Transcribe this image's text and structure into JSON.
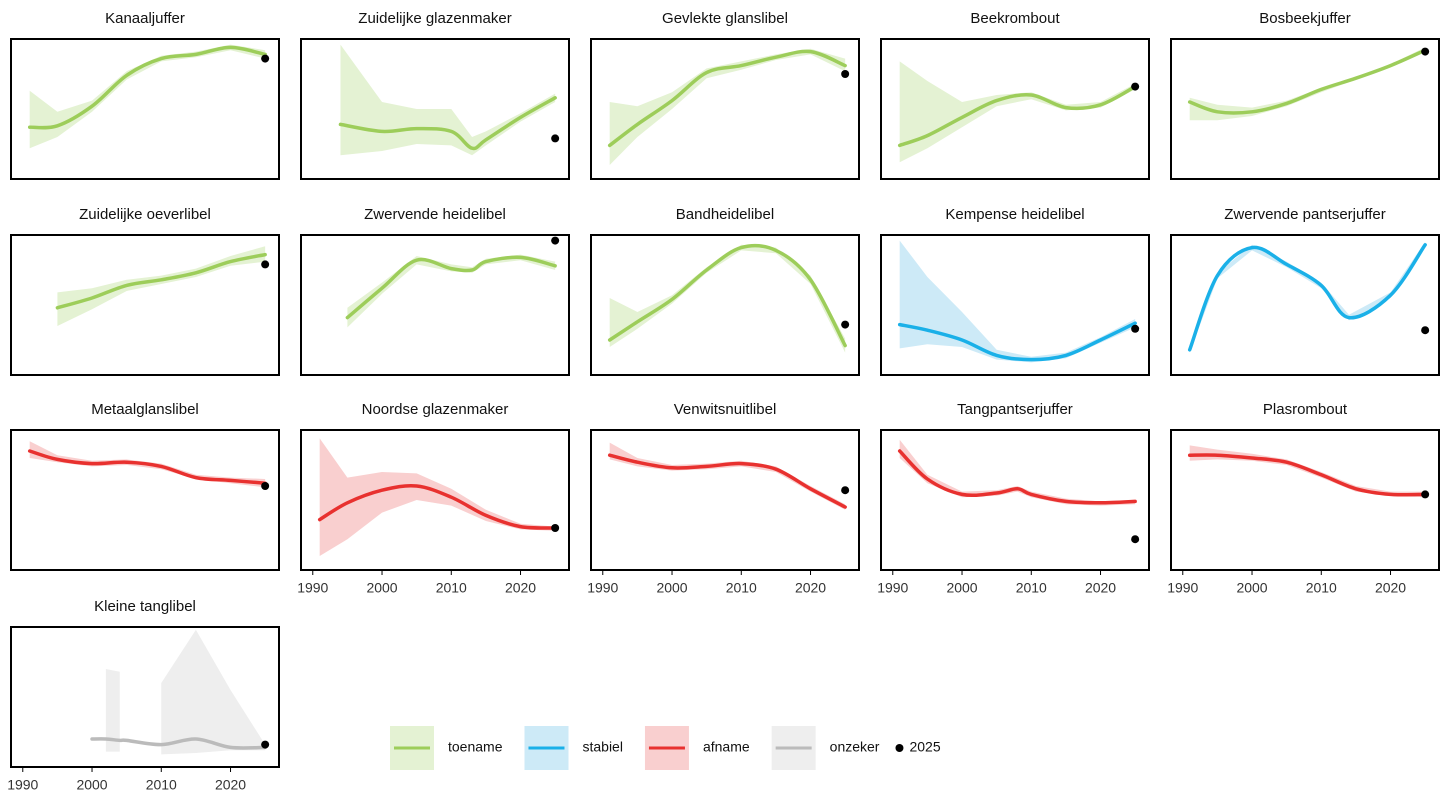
{
  "chart_data": {
    "type": "small-multiples",
    "panels": [
      {
        "type": "line",
        "title": "Kanaaljuffer",
        "color": "#9dcd5a",
        "band_color": "#e4f2d3",
        "xlim": [
          1988.3,
          2027
        ],
        "ylim": [
          0,
          100
        ],
        "x": [
          1991,
          1995,
          2000,
          2005,
          2010,
          2015,
          2020,
          2025
        ],
        "values": [
          37,
          38,
          52,
          74,
          86,
          89,
          94,
          89
        ],
        "upper": [
          63,
          48,
          56,
          77,
          88,
          91,
          96,
          92
        ],
        "lower": [
          22,
          30,
          48,
          71,
          84,
          87,
          92,
          86
        ],
        "point": {
          "x": 2025,
          "y": 86
        }
      },
      {
        "type": "line",
        "title": "Zuidelijke glazenmaker",
        "color": "#9dcd5a",
        "band_color": "#e4f2d3",
        "xlim": [
          1988.3,
          2027
        ],
        "ylim": [
          0,
          100
        ],
        "x": [
          1994,
          2000,
          2005,
          2010,
          2013,
          2015,
          2020,
          2025
        ],
        "values": [
          39,
          34,
          36,
          34,
          22,
          28,
          44,
          58
        ],
        "upper": [
          96,
          55,
          50,
          50,
          30,
          34,
          47,
          61
        ],
        "lower": [
          17,
          20,
          25,
          24,
          17,
          24,
          41,
          55
        ],
        "point": {
          "x": 2025,
          "y": 29
        }
      },
      {
        "type": "line",
        "title": "Gevlekte glanslibel",
        "color": "#9dcd5a",
        "band_color": "#e4f2d3",
        "xlim": [
          1988.3,
          2027
        ],
        "ylim": [
          0,
          100
        ],
        "x": [
          1991,
          1995,
          2000,
          2005,
          2010,
          2015,
          2020,
          2025
        ],
        "values": [
          24,
          39,
          56,
          76,
          81,
          87,
          91,
          81
        ],
        "upper": [
          55,
          52,
          62,
          79,
          84,
          89,
          93,
          86
        ],
        "lower": [
          10,
          30,
          50,
          72,
          78,
          85,
          89,
          77
        ],
        "point": {
          "x": 2025,
          "y": 75
        }
      },
      {
        "type": "line",
        "title": "Beekrombout",
        "color": "#9dcd5a",
        "band_color": "#e4f2d3",
        "xlim": [
          1988.3,
          2027
        ],
        "ylim": [
          0,
          100
        ],
        "x": [
          1991,
          1995,
          2000,
          2005,
          2010,
          2015,
          2020,
          2025
        ],
        "values": [
          24,
          31,
          44,
          56,
          60,
          51,
          53,
          66
        ],
        "upper": [
          84,
          70,
          55,
          60,
          62,
          53,
          55,
          68
        ],
        "lower": [
          12,
          22,
          37,
          52,
          57,
          49,
          51,
          64
        ],
        "point": {
          "x": 2025,
          "y": 66
        }
      },
      {
        "type": "line",
        "title": "Bosbeekjuffer",
        "color": "#9dcd5a",
        "band_color": "#e4f2d3",
        "xlim": [
          1988.3,
          2027
        ],
        "ylim": [
          0,
          100
        ],
        "x": [
          1991,
          1995,
          2000,
          2005,
          2010,
          2015,
          2020,
          2025
        ],
        "values": [
          55,
          48,
          48,
          54,
          64,
          72,
          81,
          92
        ],
        "upper": [
          58,
          53,
          51,
          56,
          65,
          73,
          82,
          94
        ],
        "lower": [
          42,
          42,
          45,
          52,
          62,
          71,
          80,
          91
        ],
        "point": {
          "x": 2025,
          "y": 91
        }
      },
      {
        "type": "line",
        "title": "Zuidelijke oeverlibel",
        "color": "#9dcd5a",
        "band_color": "#e4f2d3",
        "xlim": [
          1988.3,
          2027
        ],
        "ylim": [
          0,
          100
        ],
        "x": [
          1995,
          2000,
          2005,
          2010,
          2015,
          2020,
          2025
        ],
        "values": [
          48,
          55,
          64,
          68,
          73,
          81,
          86
        ],
        "upper": [
          59,
          62,
          68,
          71,
          76,
          85,
          92
        ],
        "lower": [
          35,
          47,
          60,
          65,
          70,
          78,
          81
        ],
        "point": {
          "x": 2025,
          "y": 79
        }
      },
      {
        "type": "line",
        "title": "Zwervende heidelibel",
        "color": "#9dcd5a",
        "band_color": "#e4f2d3",
        "xlim": [
          1988.3,
          2027
        ],
        "ylim": [
          0,
          100
        ],
        "x": [
          1995,
          2000,
          2005,
          2010,
          2013,
          2015,
          2020,
          2025
        ],
        "values": [
          41,
          62,
          82,
          76,
          75,
          81,
          84,
          78
        ],
        "upper": [
          48,
          66,
          85,
          79,
          77,
          83,
          86,
          81
        ],
        "lower": [
          34,
          58,
          79,
          74,
          73,
          79,
          82,
          75
        ],
        "point": {
          "x": 2025,
          "y": 96
        }
      },
      {
        "type": "line",
        "title": "Bandheidelibel",
        "color": "#9dcd5a",
        "band_color": "#e4f2d3",
        "xlim": [
          1988.3,
          2027
        ],
        "ylim": [
          0,
          100
        ],
        "x": [
          1991,
          1995,
          2000,
          2005,
          2010,
          2015,
          2020,
          2025
        ],
        "values": [
          25,
          38,
          54,
          75,
          91,
          89,
          68,
          21
        ],
        "upper": [
          55,
          45,
          57,
          77,
          93,
          91,
          71,
          26
        ],
        "lower": [
          20,
          33,
          51,
          73,
          89,
          87,
          65,
          16
        ],
        "point": {
          "x": 2025,
          "y": 36
        }
      },
      {
        "type": "line",
        "title": "Kempense heidelibel",
        "color": "#1ab0e8",
        "band_color": "#cdeaf7",
        "xlim": [
          1988.3,
          2027
        ],
        "ylim": [
          0,
          100
        ],
        "x": [
          1991,
          1995,
          2000,
          2005,
          2010,
          2015,
          2020,
          2025
        ],
        "values": [
          36,
          32,
          25,
          14,
          11,
          14,
          25,
          37
        ],
        "upper": [
          96,
          70,
          45,
          18,
          13,
          16,
          27,
          40
        ],
        "lower": [
          19,
          22,
          20,
          11,
          9,
          12,
          23,
          34
        ],
        "point": {
          "x": 2025,
          "y": 33
        }
      },
      {
        "type": "line",
        "title": "Zwervende pantserjuffer",
        "color": "#1ab0e8",
        "band_color": "#cdeaf7",
        "xlim": [
          1988.3,
          2027
        ],
        "ylim": [
          0,
          100
        ],
        "x": [
          1991,
          1995,
          2000,
          2005,
          2010,
          2014,
          2020,
          2025
        ],
        "values": [
          18,
          71,
          91,
          79,
          64,
          41,
          57,
          93
        ],
        "upper": [
          20,
          73,
          93,
          81,
          66,
          43,
          59,
          95
        ],
        "lower": [
          16,
          69,
          89,
          77,
          62,
          39,
          55,
          91
        ],
        "point": {
          "x": 2025,
          "y": 32
        }
      },
      {
        "type": "line",
        "title": "Metaalglanslibel",
        "color": "#e8312f",
        "band_color": "#f9cfcf",
        "xlim": [
          1988.3,
          2027
        ],
        "ylim": [
          0,
          100
        ],
        "x": [
          1991,
          1995,
          2000,
          2005,
          2010,
          2015,
          2020,
          2025
        ],
        "values": [
          85,
          79,
          76,
          77,
          74,
          66,
          64,
          62
        ],
        "upper": [
          92,
          82,
          78,
          79,
          76,
          68,
          66,
          65
        ],
        "lower": [
          80,
          77,
          74,
          75,
          72,
          65,
          62,
          59
        ],
        "point": {
          "x": 2025,
          "y": 60
        }
      },
      {
        "type": "line",
        "title": "Noordse glazenmaker",
        "color": "#e8312f",
        "band_color": "#f9cfcf",
        "xlim": [
          1988.3,
          2027
        ],
        "ylim": [
          0,
          100
        ],
        "xticks": [
          1990,
          2000,
          2010,
          2020
        ],
        "x": [
          1991,
          1995,
          2000,
          2005,
          2010,
          2015,
          2020,
          2025
        ],
        "values": [
          36,
          48,
          57,
          60,
          52,
          39,
          31,
          30
        ],
        "upper": [
          94,
          66,
          70,
          69,
          58,
          43,
          33,
          31
        ],
        "lower": [
          10,
          22,
          41,
          50,
          46,
          35,
          29,
          28
        ],
        "point": {
          "x": 2025,
          "y": 30
        }
      },
      {
        "type": "line",
        "title": "Venwitsnuitlibel",
        "color": "#e8312f",
        "band_color": "#f9cfcf",
        "xlim": [
          1988.3,
          2027
        ],
        "ylim": [
          0,
          100
        ],
        "xticks": [
          1990,
          2000,
          2010,
          2020
        ],
        "x": [
          1991,
          1995,
          2000,
          2005,
          2010,
          2015,
          2020,
          2025
        ],
        "values": [
          82,
          77,
          73,
          74,
          76,
          72,
          58,
          45
        ],
        "upper": [
          91,
          80,
          75,
          76,
          78,
          74,
          60,
          47
        ],
        "lower": [
          79,
          74,
          71,
          72,
          74,
          70,
          56,
          43
        ],
        "point": {
          "x": 2025,
          "y": 57
        }
      },
      {
        "type": "line",
        "title": "Tangpantserjuffer",
        "color": "#e8312f",
        "band_color": "#f9cfcf",
        "xlim": [
          1988.3,
          2027
        ],
        "ylim": [
          0,
          100
        ],
        "xticks": [
          1990,
          2000,
          2010,
          2020
        ],
        "x": [
          1991,
          1995,
          2000,
          2005,
          2008,
          2010,
          2015,
          2020,
          2025
        ],
        "values": [
          85,
          65,
          54,
          55,
          58,
          54,
          49,
          48,
          49
        ],
        "upper": [
          93,
          68,
          56,
          57,
          60,
          56,
          51,
          49,
          50
        ],
        "lower": [
          80,
          62,
          52,
          53,
          56,
          52,
          47,
          46,
          47
        ],
        "point": {
          "x": 2025,
          "y": 22
        }
      },
      {
        "type": "line",
        "title": "Plasrombout",
        "color": "#e8312f",
        "band_color": "#f9cfcf",
        "xlim": [
          1988.3,
          2027
        ],
        "ylim": [
          0,
          100
        ],
        "xticks": [
          1990,
          2000,
          2010,
          2020
        ],
        "x": [
          1991,
          1995,
          2000,
          2005,
          2010,
          2015,
          2020,
          2025
        ],
        "values": [
          82,
          82,
          80,
          77,
          68,
          58,
          54,
          54
        ],
        "upper": [
          89,
          86,
          83,
          79,
          70,
          60,
          56,
          56
        ],
        "lower": [
          78,
          79,
          78,
          75,
          66,
          56,
          53,
          52
        ],
        "point": {
          "x": 2025,
          "y": 54
        }
      },
      {
        "type": "line",
        "title": "Kleine tanglibel",
        "color": "#bbbbbb",
        "band_color": "#eeeeee",
        "xlim": [
          1988.3,
          2027
        ],
        "ylim": [
          0,
          100
        ],
        "xticks": [
          1990,
          2000,
          2010,
          2020
        ],
        "x": [
          2000,
          2002,
          2004,
          2005,
          2010,
          2015,
          2020,
          2025
        ],
        "values": [
          20,
          20,
          19,
          19,
          16,
          20,
          14,
          14
        ],
        "upper": [
          null,
          70,
          68,
          null,
          60,
          98,
          55,
          16
        ],
        "lower": [
          null,
          11,
          11,
          null,
          9,
          10,
          12,
          12
        ],
        "point": {
          "x": 2025,
          "y": 16
        }
      }
    ],
    "legend": [
      {
        "name": "toename",
        "color": "#9dcd5a",
        "band_color": "#e4f2d3"
      },
      {
        "name": "stabiel",
        "color": "#1ab0e8",
        "band_color": "#cdeaf7"
      },
      {
        "name": "afname",
        "color": "#e8312f",
        "band_color": "#f9cfcf"
      },
      {
        "name": "onzeker",
        "color": "#bbbbbb",
        "band_color": "#eeeeee"
      }
    ],
    "point_label": "2025"
  }
}
